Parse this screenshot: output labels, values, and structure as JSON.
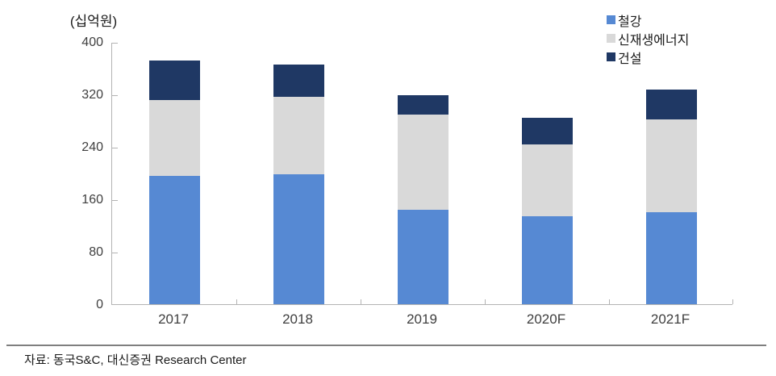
{
  "chart_data": {
    "type": "bar",
    "stacked": true,
    "unit_label": "(십억원)",
    "categories": [
      "2017",
      "2018",
      "2019",
      "2020F",
      "2021F"
    ],
    "series": [
      {
        "name": "철강",
        "color": "#5689d3",
        "values": [
          196,
          198,
          144,
          134,
          140
        ]
      },
      {
        "name": "신재생에너지",
        "color": "#d9d9d9",
        "values": [
          116,
          118,
          145,
          110,
          142
        ]
      },
      {
        "name": "건설",
        "color": "#1f3864",
        "values": [
          60,
          50,
          30,
          40,
          45
        ]
      }
    ],
    "totals": [
      372,
      366,
      319,
      284,
      327
    ],
    "ylim": [
      0,
      400
    ],
    "yticks": [
      0,
      80,
      160,
      240,
      320,
      400
    ],
    "ylabel": "",
    "xlabel": "",
    "title": "",
    "grid": false,
    "legend_position": "top-right"
  },
  "source": {
    "text": "자료: 동국S&C, 대신증권 Research Center"
  },
  "colors": {
    "axis": "#b3b3b3",
    "tick_label": "#3f3f3f",
    "text": "#1a1a1a",
    "divider": "#7f7f7f",
    "background": "#ffffff"
  }
}
